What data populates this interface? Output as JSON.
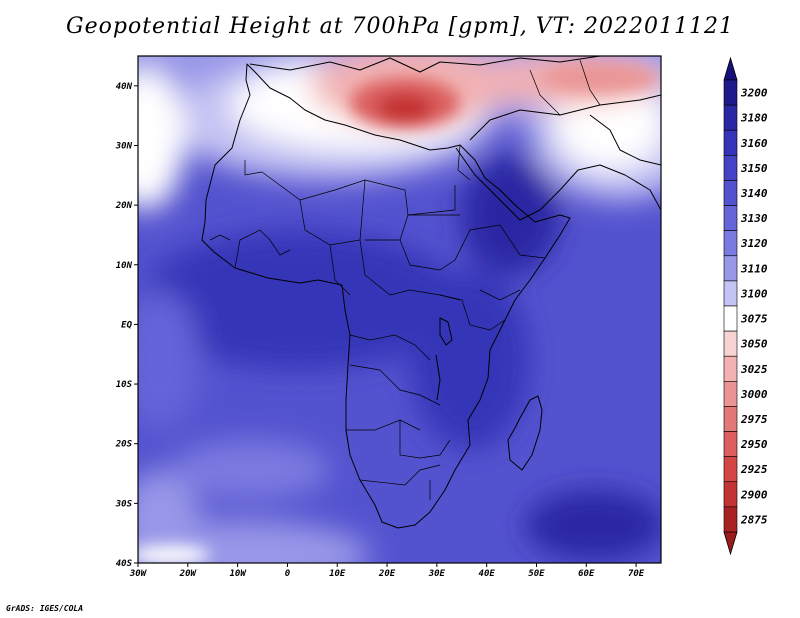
{
  "title": "Geopotential Height at 700hPa [gpm], VT: 2022011121",
  "credit": "GrADS: IGES/COLA",
  "map": {
    "lon_range": [
      -30,
      75
    ],
    "lat_range": [
      -40,
      45
    ],
    "lon_ticks": [
      {
        "value": -30,
        "label": "30W"
      },
      {
        "value": -20,
        "label": "20W"
      },
      {
        "value": -10,
        "label": "10W"
      },
      {
        "value": 0,
        "label": "0"
      },
      {
        "value": 10,
        "label": "10E"
      },
      {
        "value": 20,
        "label": "20E"
      },
      {
        "value": 30,
        "label": "30E"
      },
      {
        "value": 40,
        "label": "40E"
      },
      {
        "value": 50,
        "label": "50E"
      },
      {
        "value": 60,
        "label": "60E"
      },
      {
        "value": 70,
        "label": "70E"
      }
    ],
    "lat_ticks": [
      {
        "value": 40,
        "label": "40N"
      },
      {
        "value": 30,
        "label": "30N"
      },
      {
        "value": 20,
        "label": "20N"
      },
      {
        "value": 10,
        "label": "10N"
      },
      {
        "value": 0,
        "label": "EQ"
      },
      {
        "value": -10,
        "label": "10S"
      },
      {
        "value": -20,
        "label": "20S"
      },
      {
        "value": -30,
        "label": "30S"
      },
      {
        "value": -40,
        "label": "40S"
      }
    ]
  },
  "legend": {
    "levels": [
      {
        "label": "3200",
        "color": "#1e1a8c"
      },
      {
        "label": "3180",
        "color": "#2a27a3"
      },
      {
        "label": "3160",
        "color": "#3534b8"
      },
      {
        "label": "3150",
        "color": "#4443c6"
      },
      {
        "label": "3140",
        "color": "#5453cf"
      },
      {
        "label": "3130",
        "color": "#6564d8"
      },
      {
        "label": "3120",
        "color": "#7b7ae0"
      },
      {
        "label": "3110",
        "color": "#9897e8"
      },
      {
        "label": "3100",
        "color": "#c4c3f3"
      },
      {
        "label": "3075",
        "color": "#ffffff"
      },
      {
        "label": "3050",
        "color": "#f9d3d3"
      },
      {
        "label": "3025",
        "color": "#f2b2b2"
      },
      {
        "label": "3000",
        "color": "#ea9494"
      },
      {
        "label": "2975",
        "color": "#e37878"
      },
      {
        "label": "2950",
        "color": "#dc5e5e"
      },
      {
        "label": "2925",
        "color": "#d44646"
      },
      {
        "label": "2900",
        "color": "#c43333"
      },
      {
        "label": "2875",
        "color": "#a82222"
      }
    ],
    "top_arrow_color": "#15107a",
    "bottom_arrow_color": "#9a1c1c"
  }
}
